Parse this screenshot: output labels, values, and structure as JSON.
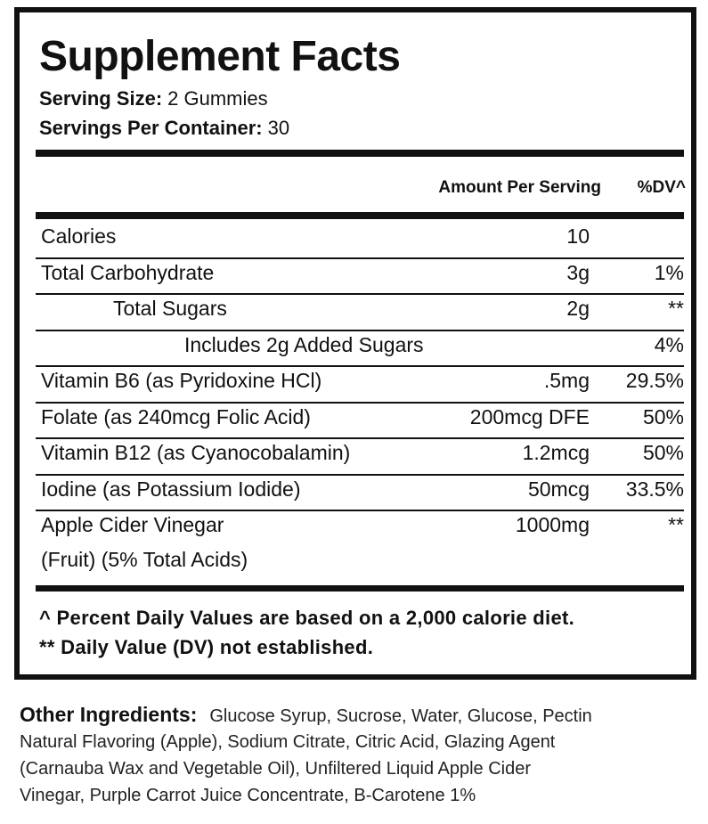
{
  "header": {
    "title": "Supplement Facts",
    "serving_size": {
      "label": "Serving Size:",
      "value": "2 Gummies"
    },
    "servings_per_container": {
      "label": "Servings Per Container:",
      "value": "30"
    }
  },
  "table": {
    "columns": [
      "Amount Per Serving",
      "%DV^"
    ],
    "rows": [
      {
        "name": "Calories",
        "amount": "10"
      },
      {
        "name": "Total Carbohydrate",
        "amount": "3g",
        "dv": "1%"
      },
      {
        "name": "Total Sugars",
        "amount": "2g",
        "dv": "**"
      },
      {
        "name": "Includes 2g Added Sugars",
        "dv": "4%"
      },
      {
        "name": "Vitamin B6 (as Pyridoxine HCl)",
        "amount": ".5mg",
        "dv": "29.5%"
      },
      {
        "name": "Folate (as 240mcg Folic Acid)",
        "amount": "200mcg DFE",
        "dv": "50%"
      },
      {
        "name": "Vitamin B12 (as Cyanocobalamin)",
        "amount": "1.2mcg",
        "dv": "50%"
      },
      {
        "name": "Iodine (as Potassium Iodide)",
        "amount": "50mcg",
        "dv": "33.5%"
      },
      {
        "name": [
          "Apple Cider Vinegar",
          "(Fruit) (5% Total Acids)"
        ],
        "amount": "1000mg",
        "dv": "**"
      }
    ]
  },
  "footnotes": [
    "^ Percent Daily Values are based on a 2,000 calorie diet.",
    "** Daily Value (DV) not established."
  ],
  "other_ingredients": {
    "label": "Other Ingredients:",
    "lines": [
      "Glucose Syrup, Sucrose, Water, Glucose, Pectin",
      "Natural Flavoring (Apple), Sodium Citrate, Citric Acid, Glazing Agent",
      "(Carnauba Wax and Vegetable Oil), Unfiltered Liquid Apple Cider",
      "Vinegar, Purple Carrot Juice Concentrate, B-Carotene 1%"
    ]
  }
}
